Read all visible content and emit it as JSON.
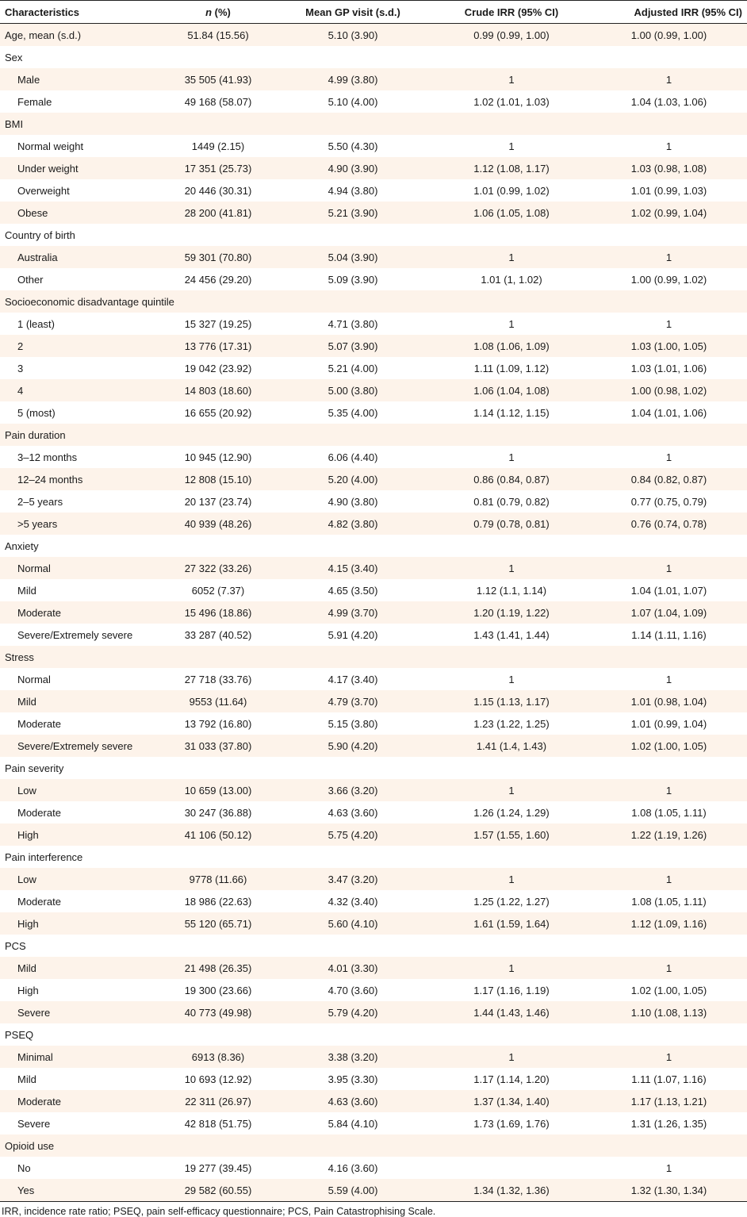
{
  "headers": [
    "Characteristics",
    "n (%)",
    "Mean GP visit (s.d.)",
    "Crude IRR (95% CI)",
    "Adjusted IRR (95% CI)"
  ],
  "rows": [
    {
      "label": "Age, mean (s.d.)",
      "n": "51.84 (15.56)",
      "mean": "5.10 (3.90)",
      "crude": "0.99 (0.99, 1.00)",
      "adjusted": "1.00 (0.99, 1.00)"
    },
    {
      "label": "Sex",
      "group": true
    },
    {
      "label": "Male",
      "n": "35 505 (41.93)",
      "mean": "4.99 (3.80)",
      "crude": "1",
      "adjusted": "1",
      "indent": true
    },
    {
      "label": "Female",
      "n": "49 168 (58.07)",
      "mean": "5.10 (4.00)",
      "crude": "1.02 (1.01, 1.03)",
      "adjusted": "1.04 (1.03, 1.06)",
      "indent": true
    },
    {
      "label": "BMI",
      "group": true
    },
    {
      "label": "Normal weight",
      "n": "1449 (2.15)",
      "mean": "5.50 (4.30)",
      "crude": "1",
      "adjusted": "1",
      "indent": true
    },
    {
      "label": "Under weight",
      "n": "17 351 (25.73)",
      "mean": "4.90 (3.90)",
      "crude": "1.12 (1.08, 1.17)",
      "adjusted": "1.03 (0.98, 1.08)",
      "indent": true
    },
    {
      "label": "Overweight",
      "n": "20 446 (30.31)",
      "mean": "4.94 (3.80)",
      "crude": "1.01 (0.99, 1.02)",
      "adjusted": "1.01 (0.99, 1.03)",
      "indent": true
    },
    {
      "label": "Obese",
      "n": "28 200 (41.81)",
      "mean": "5.21 (3.90)",
      "crude": "1.06 (1.05, 1.08)",
      "adjusted": "1.02 (0.99, 1.04)",
      "indent": true
    },
    {
      "label": "Country of birth",
      "group": true
    },
    {
      "label": "Australia",
      "n": "59 301 (70.80)",
      "mean": "5.04 (3.90)",
      "crude": "1",
      "adjusted": "1",
      "indent": true
    },
    {
      "label": "Other",
      "n": "24 456 (29.20)",
      "mean": "5.09 (3.90)",
      "crude": "1.01 (1, 1.02)",
      "adjusted": "1.00 (0.99, 1.02)",
      "indent": true
    },
    {
      "label": "Socioeconomic disadvantage quintile",
      "group": true
    },
    {
      "label": "1 (least)",
      "n": "15 327 (19.25)",
      "mean": "4.71 (3.80)",
      "crude": "1",
      "adjusted": "1",
      "indent": true
    },
    {
      "label": "2",
      "n": "13 776 (17.31)",
      "mean": "5.07 (3.90)",
      "crude": "1.08 (1.06, 1.09)",
      "adjusted": "1.03 (1.00, 1.05)",
      "indent": true
    },
    {
      "label": "3",
      "n": "19 042 (23.92)",
      "mean": "5.21 (4.00)",
      "crude": "1.11 (1.09, 1.12)",
      "adjusted": "1.03 (1.01, 1.06)",
      "indent": true
    },
    {
      "label": "4",
      "n": "14 803 (18.60)",
      "mean": "5.00 (3.80)",
      "crude": "1.06 (1.04, 1.08)",
      "adjusted": "1.00 (0.98, 1.02)",
      "indent": true
    },
    {
      "label": "5 (most)",
      "n": "16 655 (20.92)",
      "mean": "5.35 (4.00)",
      "crude": "1.14 (1.12, 1.15)",
      "adjusted": "1.04 (1.01, 1.06)",
      "indent": true
    },
    {
      "label": "Pain duration",
      "group": true
    },
    {
      "label": "3–12 months",
      "n": "10 945 (12.90)",
      "mean": "6.06 (4.40)",
      "crude": "1",
      "adjusted": "1",
      "indent": true
    },
    {
      "label": "12–24 months",
      "n": "12 808 (15.10)",
      "mean": "5.20 (4.00)",
      "crude": "0.86 (0.84, 0.87)",
      "adjusted": "0.84 (0.82, 0.87)",
      "indent": true
    },
    {
      "label": "2–5 years",
      "n": "20 137 (23.74)",
      "mean": "4.90 (3.80)",
      "crude": "0.81 (0.79, 0.82)",
      "adjusted": "0.77 (0.75, 0.79)",
      "indent": true
    },
    {
      "label": ">5 years",
      "n": "40 939 (48.26)",
      "mean": "4.82 (3.80)",
      "crude": "0.79 (0.78, 0.81)",
      "adjusted": "0.76 (0.74, 0.78)",
      "indent": true
    },
    {
      "label": "Anxiety",
      "group": true
    },
    {
      "label": "Normal",
      "n": "27 322 (33.26)",
      "mean": "4.15 (3.40)",
      "crude": "1",
      "adjusted": "1",
      "indent": true
    },
    {
      "label": "Mild",
      "n": "6052 (7.37)",
      "mean": "4.65 (3.50)",
      "crude": "1.12 (1.1, 1.14)",
      "adjusted": "1.04 (1.01, 1.07)",
      "indent": true
    },
    {
      "label": "Moderate",
      "n": "15 496 (18.86)",
      "mean": "4.99 (3.70)",
      "crude": "1.20 (1.19, 1.22)",
      "adjusted": "1.07 (1.04, 1.09)",
      "indent": true
    },
    {
      "label": "Severe/Extremely severe",
      "n": "33 287 (40.52)",
      "mean": "5.91 (4.20)",
      "crude": "1.43 (1.41, 1.44)",
      "adjusted": "1.14 (1.11, 1.16)",
      "indent": true
    },
    {
      "label": "Stress",
      "group": true
    },
    {
      "label": "Normal",
      "n": "27 718 (33.76)",
      "mean": "4.17 (3.40)",
      "crude": "1",
      "adjusted": "1",
      "indent": true
    },
    {
      "label": "Mild",
      "n": "9553 (11.64)",
      "mean": "4.79 (3.70)",
      "crude": "1.15 (1.13, 1.17)",
      "adjusted": "1.01 (0.98, 1.04)",
      "indent": true
    },
    {
      "label": "Moderate",
      "n": "13 792 (16.80)",
      "mean": "5.15 (3.80)",
      "crude": "1.23 (1.22, 1.25)",
      "adjusted": "1.01 (0.99, 1.04)",
      "indent": true
    },
    {
      "label": "Severe/Extremely severe",
      "n": "31 033 (37.80)",
      "mean": "5.90 (4.20)",
      "crude": "1.41 (1.4, 1.43)",
      "adjusted": "1.02 (1.00, 1.05)",
      "indent": true
    },
    {
      "label": "Pain severity",
      "group": true
    },
    {
      "label": "Low",
      "n": "10 659 (13.00)",
      "mean": "3.66 (3.20)",
      "crude": "1",
      "adjusted": "1",
      "indent": true
    },
    {
      "label": "Moderate",
      "n": "30 247 (36.88)",
      "mean": "4.63 (3.60)",
      "crude": "1.26 (1.24, 1.29)",
      "adjusted": "1.08 (1.05, 1.11)",
      "indent": true
    },
    {
      "label": "High",
      "n": "41 106 (50.12)",
      "mean": "5.75 (4.20)",
      "crude": "1.57 (1.55, 1.60)",
      "adjusted": "1.22 (1.19, 1.26)",
      "indent": true
    },
    {
      "label": "Pain interference",
      "group": true
    },
    {
      "label": "Low",
      "n": "9778 (11.66)",
      "mean": "3.47 (3.20)",
      "crude": "1",
      "adjusted": "1",
      "indent": true
    },
    {
      "label": "Moderate",
      "n": "18 986 (22.63)",
      "mean": "4.32 (3.40)",
      "crude": "1.25 (1.22, 1.27)",
      "adjusted": "1.08 (1.05, 1.11)",
      "indent": true
    },
    {
      "label": "High",
      "n": "55 120 (65.71)",
      "mean": "5.60 (4.10)",
      "crude": "1.61 (1.59, 1.64)",
      "adjusted": "1.12 (1.09, 1.16)",
      "indent": true
    },
    {
      "label": "PCS",
      "group": true
    },
    {
      "label": "Mild",
      "n": "21 498 (26.35)",
      "mean": "4.01 (3.30)",
      "crude": "1",
      "adjusted": "1",
      "indent": true
    },
    {
      "label": "High",
      "n": "19 300 (23.66)",
      "mean": "4.70 (3.60)",
      "crude": "1.17 (1.16, 1.19)",
      "adjusted": "1.02 (1.00, 1.05)",
      "indent": true
    },
    {
      "label": "Severe",
      "n": "40 773 (49.98)",
      "mean": "5.79 (4.20)",
      "crude": "1.44 (1.43, 1.46)",
      "adjusted": "1.10 (1.08, 1.13)",
      "indent": true
    },
    {
      "label": "PSEQ",
      "group": true
    },
    {
      "label": "Minimal",
      "n": "6913 (8.36)",
      "mean": "3.38 (3.20)",
      "crude": "1",
      "adjusted": "1",
      "indent": true
    },
    {
      "label": "Mild",
      "n": "10 693 (12.92)",
      "mean": "3.95 (3.30)",
      "crude": "1.17 (1.14, 1.20)",
      "adjusted": "1.11 (1.07, 1.16)",
      "indent": true
    },
    {
      "label": "Moderate",
      "n": "22 311 (26.97)",
      "mean": "4.63 (3.60)",
      "crude": "1.37 (1.34, 1.40)",
      "adjusted": "1.17 (1.13, 1.21)",
      "indent": true
    },
    {
      "label": "Severe",
      "n": "42 818 (51.75)",
      "mean": "5.84 (4.10)",
      "crude": "1.73 (1.69, 1.76)",
      "adjusted": "1.31 (1.26, 1.35)",
      "indent": true
    },
    {
      "label": "Opioid use",
      "group": true
    },
    {
      "label": "No",
      "n": "19 277 (39.45)",
      "mean": "4.16 (3.60)",
      "crude": "",
      "adjusted": "1",
      "indent": true
    },
    {
      "label": "Yes",
      "n": "29 582 (60.55)",
      "mean": "5.59 (4.00)",
      "crude": "1.34 (1.32, 1.36)",
      "adjusted": "1.32 (1.30, 1.34)",
      "indent": true
    }
  ],
  "footnote": "IRR, incidence rate ratio; PSEQ, pain self-efficacy questionnaire; PCS, Pain Catastrophising Scale.",
  "colors": {
    "stripe": "#fdf3ea",
    "rule": "#222222"
  }
}
